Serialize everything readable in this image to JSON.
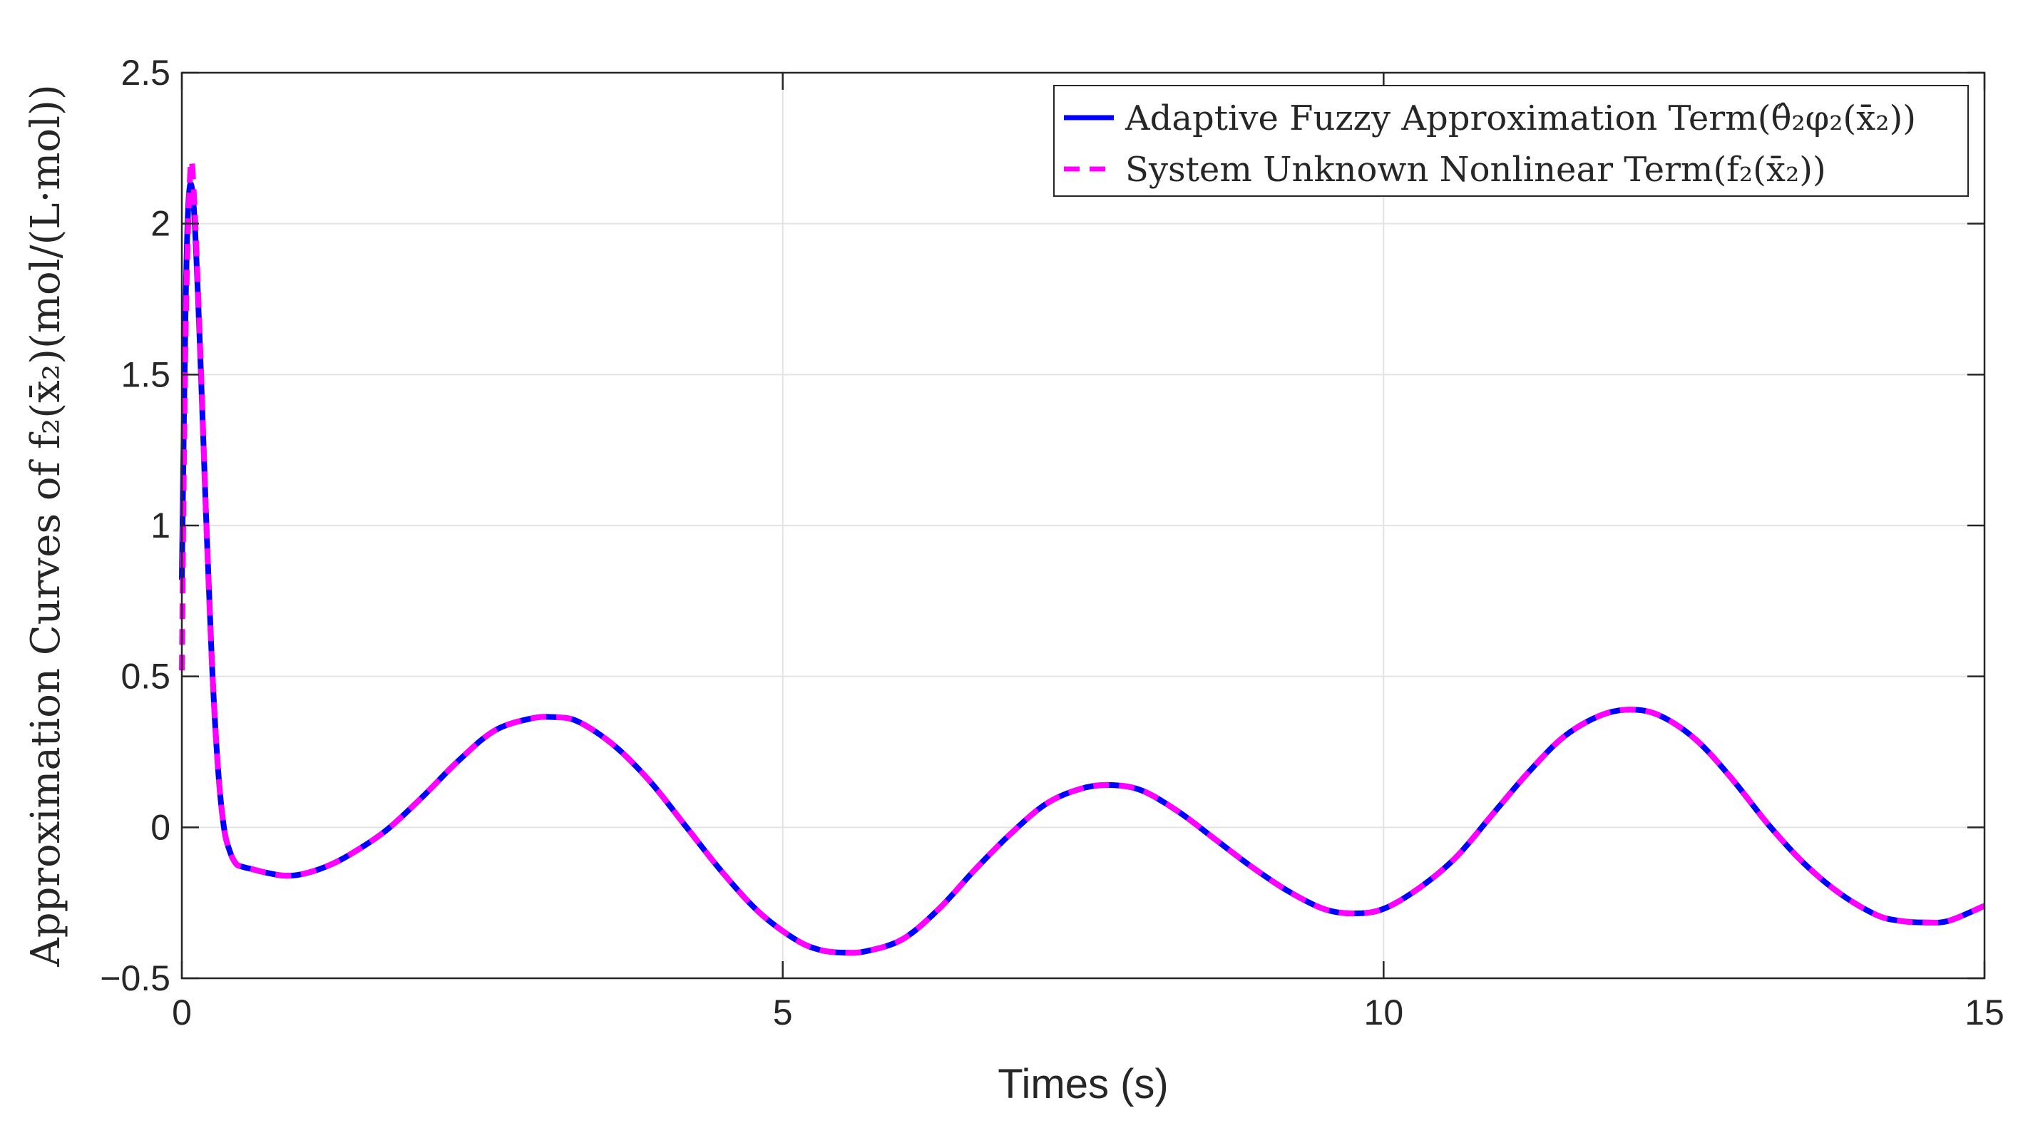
{
  "chart_data": {
    "type": "line",
    "title": "",
    "xlabel": "Times (s)",
    "ylabel": "Approximation Curves of f₂(x̄₂)(mol/(L·mol))",
    "xlim": [
      0,
      15
    ],
    "ylim": [
      -0.5,
      2.5
    ],
    "xticks": [
      0,
      5,
      10,
      15
    ],
    "yticks": [
      -0.5,
      0,
      0.5,
      1,
      1.5,
      2,
      2.5
    ],
    "xtick_labels": [
      "0",
      "5",
      "10",
      "15"
    ],
    "ytick_labels": [
      "−0.5",
      "0",
      "0.5",
      "1",
      "1.5",
      "2",
      "2.5"
    ],
    "grid": true,
    "legend_position": "top-right",
    "series": [
      {
        "name": "Adaptive Fuzzy Approximation Term(θ̂₂φ₂(x̄₂))",
        "color": "#0000ff",
        "style": "solid",
        "x": [
          0,
          0.03,
          0.06,
          0.1,
          0.15,
          0.2,
          0.25,
          0.3,
          0.35,
          0.4,
          0.45,
          0.5,
          0.6,
          0.7,
          0.85,
          1.0,
          1.2,
          1.4,
          1.7,
          2.0,
          2.3,
          2.6,
          2.9,
          3.1,
          3.3,
          3.6,
          3.9,
          4.2,
          4.5,
          4.8,
          5.1,
          5.3,
          5.5,
          5.7,
          6.0,
          6.3,
          6.6,
          6.9,
          7.2,
          7.5,
          7.75,
          8.0,
          8.3,
          8.6,
          8.9,
          9.2,
          9.5,
          9.75,
          10.0,
          10.3,
          10.6,
          10.9,
          11.2,
          11.5,
          11.8,
          12.05,
          12.3,
          12.6,
          12.9,
          13.2,
          13.5,
          13.8,
          14.1,
          14.3,
          14.5,
          14.7,
          15.0
        ],
        "y": [
          0.82,
          1.7,
          2.1,
          2.05,
          1.6,
          1.05,
          0.55,
          0.2,
          0.0,
          -0.08,
          -0.12,
          -0.13,
          -0.14,
          -0.15,
          -0.16,
          -0.155,
          -0.13,
          -0.09,
          -0.01,
          0.1,
          0.22,
          0.32,
          0.36,
          0.365,
          0.35,
          0.27,
          0.15,
          0.0,
          -0.15,
          -0.28,
          -0.37,
          -0.405,
          -0.415,
          -0.41,
          -0.37,
          -0.27,
          -0.14,
          -0.02,
          0.08,
          0.13,
          0.14,
          0.12,
          0.05,
          -0.04,
          -0.13,
          -0.21,
          -0.27,
          -0.285,
          -0.27,
          -0.2,
          -0.1,
          0.04,
          0.18,
          0.3,
          0.37,
          0.39,
          0.37,
          0.29,
          0.16,
          0.01,
          -0.12,
          -0.22,
          -0.29,
          -0.31,
          -0.315,
          -0.31,
          -0.26
        ]
      },
      {
        "name": "System Unknown Nonlinear Term(f₂(x̄₂))",
        "color": "#ff00ff",
        "style": "dashed",
        "x": [
          0,
          0.03,
          0.07,
          0.1,
          0.15,
          0.2,
          0.25,
          0.3,
          0.35,
          0.4,
          0.45,
          0.5,
          0.6,
          0.7,
          0.85,
          1.0,
          1.2,
          1.4,
          1.7,
          2.0,
          2.3,
          2.6,
          2.9,
          3.1,
          3.3,
          3.6,
          3.9,
          4.2,
          4.5,
          4.8,
          5.1,
          5.3,
          5.5,
          5.7,
          6.0,
          6.3,
          6.6,
          6.9,
          7.2,
          7.5,
          7.75,
          8.0,
          8.3,
          8.6,
          8.9,
          9.2,
          9.5,
          9.75,
          10.0,
          10.3,
          10.6,
          10.9,
          11.2,
          11.5,
          11.8,
          12.05,
          12.3,
          12.6,
          12.9,
          13.2,
          13.5,
          13.8,
          14.1,
          14.3,
          14.5,
          14.7,
          15.0
        ],
        "y": [
          0.52,
          1.6,
          2.17,
          2.1,
          1.62,
          1.05,
          0.55,
          0.2,
          0.0,
          -0.08,
          -0.12,
          -0.13,
          -0.14,
          -0.15,
          -0.16,
          -0.155,
          -0.13,
          -0.09,
          -0.01,
          0.1,
          0.22,
          0.32,
          0.36,
          0.365,
          0.35,
          0.27,
          0.15,
          0.0,
          -0.15,
          -0.28,
          -0.37,
          -0.405,
          -0.415,
          -0.41,
          -0.37,
          -0.27,
          -0.14,
          -0.02,
          0.08,
          0.13,
          0.14,
          0.12,
          0.05,
          -0.04,
          -0.13,
          -0.21,
          -0.27,
          -0.285,
          -0.27,
          -0.2,
          -0.1,
          0.04,
          0.18,
          0.3,
          0.37,
          0.39,
          0.37,
          0.29,
          0.16,
          0.01,
          -0.12,
          -0.22,
          -0.29,
          -0.31,
          -0.315,
          -0.31,
          -0.26
        ]
      }
    ]
  }
}
